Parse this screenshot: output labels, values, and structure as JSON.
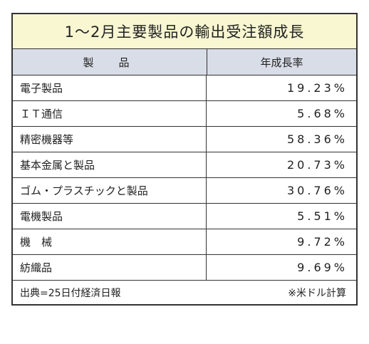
{
  "title": "1～2月主要製品の輸出受注額成長",
  "header": {
    "product": "製　品",
    "growth": "年成長率"
  },
  "rows": [
    {
      "product": "電子製品",
      "growth": "19.23%"
    },
    {
      "product": "ＩＴ通信",
      "growth": "5.68%"
    },
    {
      "product": "精密機器等",
      "growth": "58.36%"
    },
    {
      "product": "基本金属と製品",
      "growth": "20.73%"
    },
    {
      "product": "ゴム・プラスチックと製品",
      "growth": "30.76%"
    },
    {
      "product": "電機製品",
      "growth": "5.51%"
    },
    {
      "product": "機　械",
      "growth": "9.72%"
    },
    {
      "product": "紡織品",
      "growth": "9.69%"
    }
  ],
  "footer": {
    "source": "出典=25日付経済日報",
    "note": "※米ドル計算"
  },
  "colors": {
    "title_bg": "#f8f7d2",
    "header_bg": "#d9dde7",
    "border": "#333333"
  }
}
